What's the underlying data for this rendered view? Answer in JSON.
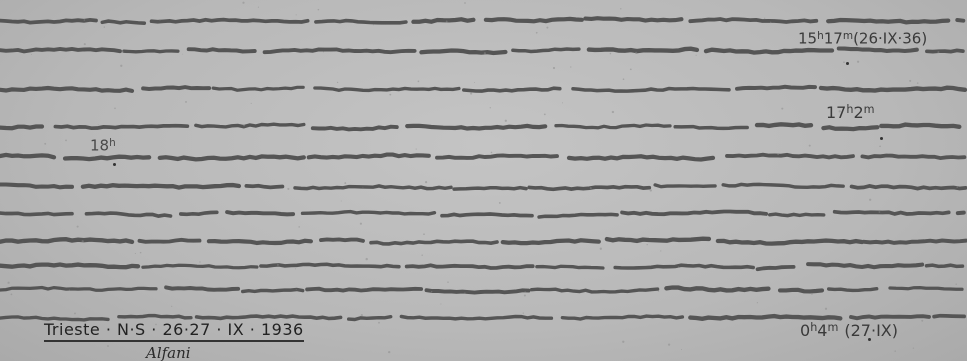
{
  "annotations": {
    "t1": {
      "base": "15",
      "unit": "h",
      "base2": "17",
      "unit2": "m",
      "date": "(26·IX·36)"
    },
    "t2": {
      "base": "17",
      "unit": "h",
      "base2": "2",
      "unit2": "m"
    },
    "t3": {
      "base": "18",
      "unit": "h"
    },
    "t4": {
      "base": "0",
      "unit": "h",
      "base2": "4",
      "unit2": "m",
      "date": "(27·IX)"
    }
  },
  "caption": {
    "main": "Trieste · N·S · 26·27 · IX · 1936",
    "sub": "Alfani"
  },
  "colors": {
    "paper": "#b9b9b9",
    "trace": "#555555"
  }
}
